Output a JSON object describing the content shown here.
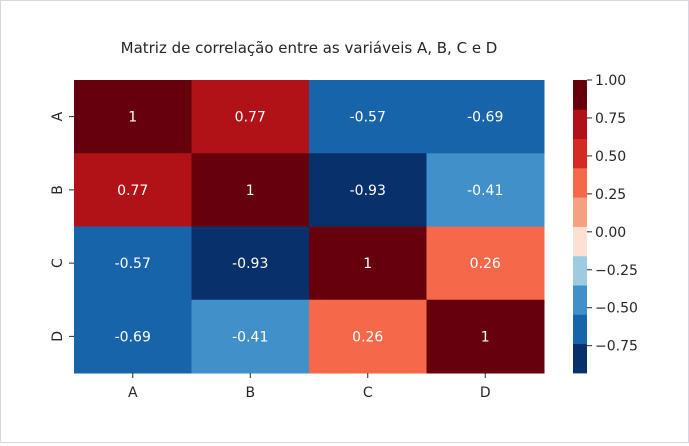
{
  "chart_data": {
    "type": "heatmap",
    "title": "Matriz de correlação entre as variáveis A, B, C e D",
    "x_labels": [
      "A",
      "B",
      "C",
      "D"
    ],
    "y_labels": [
      "A",
      "B",
      "C",
      "D"
    ],
    "values": [
      [
        1,
        0.77,
        -0.57,
        -0.69
      ],
      [
        0.77,
        1,
        -0.93,
        -0.41
      ],
      [
        -0.57,
        -0.93,
        1,
        0.26
      ],
      [
        -0.69,
        -0.41,
        0.26,
        1
      ]
    ],
    "cell_labels": [
      [
        "1",
        "0.77",
        "-0.57",
        "-0.69"
      ],
      [
        "0.77",
        "1",
        "-0.93",
        "-0.41"
      ],
      [
        "-0.57",
        "-0.93",
        "1",
        "0.26"
      ],
      [
        "-0.69",
        "-0.41",
        "0.26",
        "1"
      ]
    ],
    "colormap": {
      "type": "discrete",
      "range": [
        -0.93,
        1.0
      ],
      "colors": [
        "#08306b",
        "#1764ab",
        "#4190ca",
        "#9dcbe1",
        "#fee0d3",
        "#f6a083",
        "#f5694a",
        "#d52a21",
        "#b01217",
        "#67000d"
      ]
    },
    "colorbar": {
      "ticks": [
        1.0,
        0.75,
        0.5,
        0.25,
        0.0,
        -0.25,
        -0.5,
        -0.75
      ],
      "tick_labels": [
        "1.00",
        "0.75",
        "0.50",
        "0.25",
        "0.00",
        "−0.25",
        "−0.50",
        "−0.75"
      ]
    }
  }
}
